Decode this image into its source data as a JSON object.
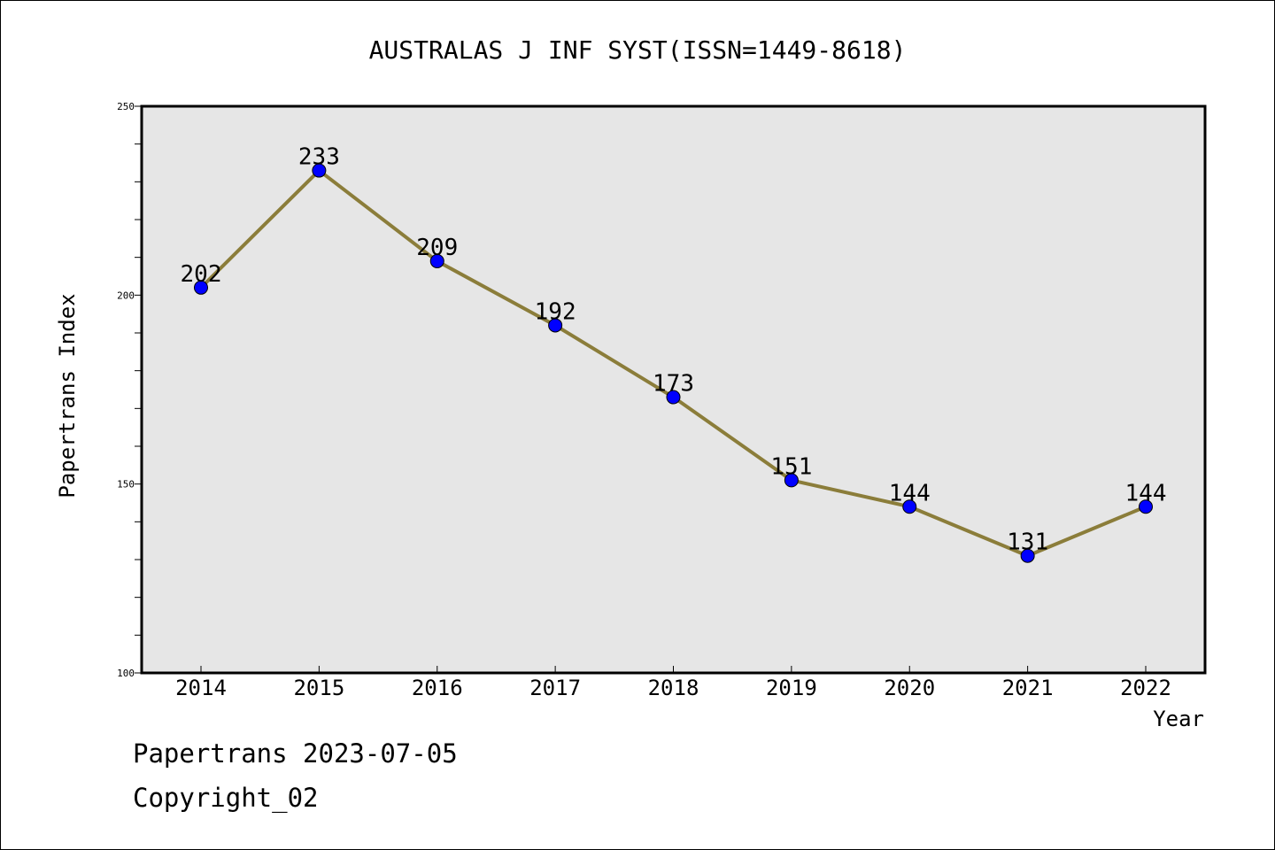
{
  "chart_data": {
    "type": "line",
    "title": "AUSTRALAS J INF SYST(ISSN=1449-8618)",
    "xlabel": "Year",
    "ylabel": "Papertrans Index",
    "categories": [
      "2014",
      "2015",
      "2016",
      "2017",
      "2018",
      "2019",
      "2020",
      "2021",
      "2022"
    ],
    "values": [
      202,
      233,
      209,
      192,
      173,
      151,
      144,
      131,
      144
    ],
    "data_labels": [
      "202",
      "233",
      "209",
      "192",
      "173",
      "151",
      "144",
      "131",
      "144"
    ],
    "ylim": [
      100,
      250
    ],
    "y_ticks": [
      100,
      150,
      200,
      250
    ],
    "y_tick_labels": [
      "100",
      "150",
      "200",
      "250"
    ],
    "grid": false,
    "colors": {
      "line": "#8b7d3a",
      "marker": "#0000ff",
      "plot_background": "#e6e6e6"
    }
  },
  "footer": {
    "line1": "Papertrans 2023-07-05",
    "line2": "Copyright_02"
  }
}
